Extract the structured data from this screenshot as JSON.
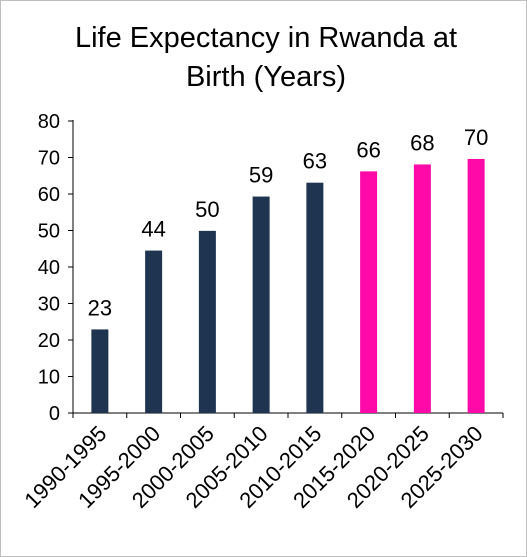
{
  "chart_data": {
    "type": "bar",
    "title": "Life Expectancy in Rwanda at Birth (Years)",
    "title_lines": [
      "Life Expectancy in Rwanda at",
      "Birth (Years)"
    ],
    "categories": [
      "1990-1995",
      "1995-2000",
      "2000-2005",
      "2005-2010",
      "2010-2015",
      "2015-2020",
      "2020-2025",
      "2025-2030"
    ],
    "values": [
      22.9,
      44.5,
      49.9,
      59.3,
      63.1,
      66.2,
      68.1,
      69.6
    ],
    "data_labels": [
      "23",
      "44",
      "50",
      "59",
      "63",
      "66",
      "68",
      "70"
    ],
    "bar_colors": [
      "#1f3450",
      "#1f3450",
      "#1f3450",
      "#1f3450",
      "#1f3450",
      "#ff0aa8",
      "#ff0aa8",
      "#ff0aa8"
    ],
    "yticks": [
      "0",
      "10",
      "20",
      "30",
      "40",
      "50",
      "60",
      "70",
      "80"
    ],
    "ylim": [
      0,
      80
    ],
    "xlabel": "",
    "ylabel": "",
    "grid": false,
    "legend": "none"
  }
}
